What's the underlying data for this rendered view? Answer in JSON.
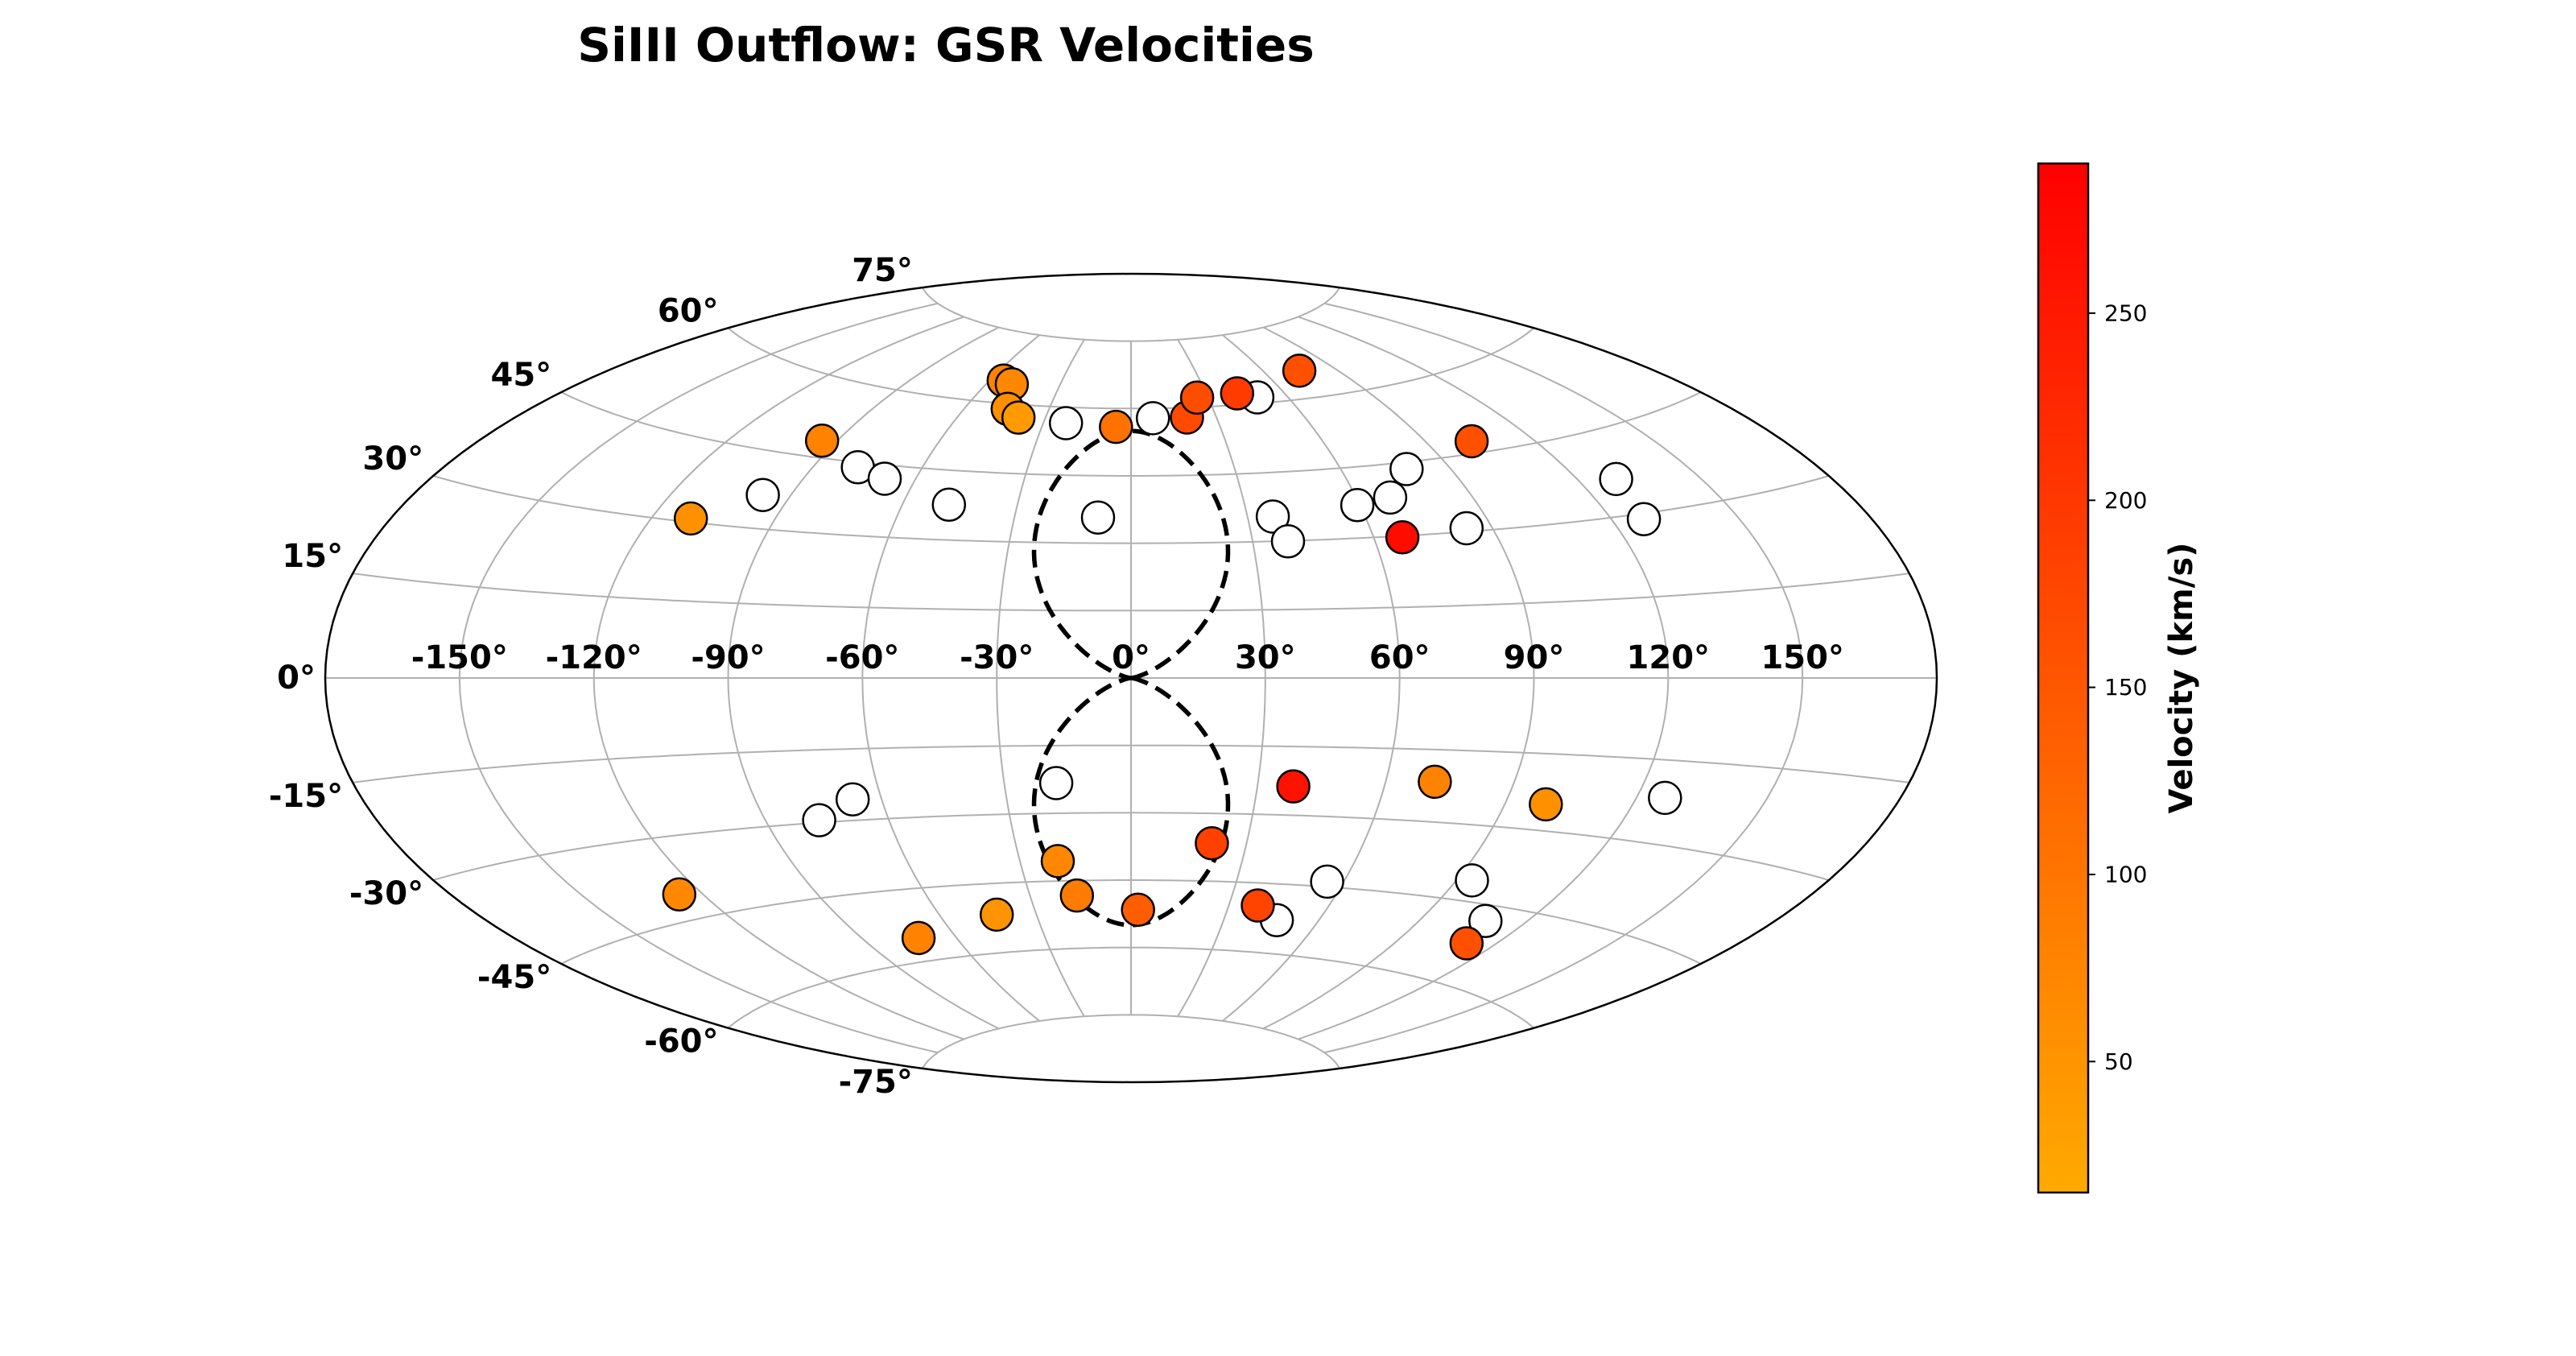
{
  "chart_data": {
    "type": "scatter",
    "projection": "aitoff",
    "title": "SiIII Outflow: GSR Velocities",
    "lon_ticks": [
      -150,
      -120,
      -90,
      -60,
      -30,
      0,
      30,
      60,
      90,
      120,
      150
    ],
    "lon_tick_labels": [
      "-150°",
      "-120°",
      "-90°",
      "-60°",
      "-30°",
      "0°",
      "30°",
      "60°",
      "90°",
      "120°",
      "150°"
    ],
    "lat_ticks": [
      -75,
      -60,
      -45,
      -30,
      -15,
      0,
      15,
      30,
      45,
      60,
      75
    ],
    "lat_tick_labels": [
      "-75°",
      "-60°",
      "-45°",
      "-30°",
      "-15°",
      "0°",
      "15°",
      "30°",
      "45°",
      "60°",
      "75°"
    ],
    "grid": true,
    "bubble_boundary_style": "dashed",
    "bubble_lobes": [
      {
        "hemisphere": "north",
        "lat_range": [
          0,
          55
        ],
        "lon_halfwidth": 25
      },
      {
        "hemisphere": "south",
        "lat_range": [
          -55,
          0
        ],
        "lon_halfwidth": 25
      }
    ],
    "colorbar": {
      "label": "Velocity (km/s)",
      "range": [
        15,
        290
      ],
      "ticks": [
        50,
        100,
        150,
        200,
        250
      ],
      "tick_labels": [
        "50",
        "100",
        "150",
        "200",
        "250"
      ],
      "colormap": "autumn_r",
      "color_low": "#ffaa00",
      "color_high": "#ff0000",
      "placement": "right"
    },
    "colored_points": [
      {
        "lon": -110.5,
        "lat": 30.7,
        "velocity": 55
      },
      {
        "lon": -94.3,
        "lat": 48.3,
        "velocity": 80
      },
      {
        "lon": -54.3,
        "lat": 64.8,
        "velocity": 80
      },
      {
        "lon": -49.8,
        "lat": 64.2,
        "velocity": 70
      },
      {
        "lon": -44.8,
        "lat": 58.9,
        "velocity": 60
      },
      {
        "lon": -39.3,
        "lat": 57.2,
        "velocity": 40
      },
      {
        "lon": -5.1,
        "lat": 55.9,
        "velocity": 105
      },
      {
        "lon": 19.7,
        "lat": 57.8,
        "velocity": 170
      },
      {
        "lon": 25.8,
        "lat": 62.1,
        "velocity": 165
      },
      {
        "lon": 42.1,
        "lat": 62.5,
        "velocity": 195
      },
      {
        "lon": 75.0,
        "lat": 65.7,
        "velocity": 160
      },
      {
        "lon": 102.9,
        "lat": 47.3,
        "velocity": 160
      },
      {
        "lon": 67.0,
        "lat": 29.7,
        "velocity": 270
      },
      {
        "lon": 38.5,
        "lat": -23.7,
        "velocity": 260
      },
      {
        "lon": 71.5,
        "lat": -21.7,
        "velocity": 80
      },
      {
        "lon": 99.7,
        "lat": -24.9,
        "velocity": 55
      },
      {
        "lon": 21.0,
        "lat": -36.6,
        "velocity": 185
      },
      {
        "lon": -19.8,
        "lat": -40.6,
        "velocity": 70
      },
      {
        "lon": -16.1,
        "lat": -48.3,
        "velocity": 90
      },
      {
        "lon": -42.4,
        "lat": -51.8,
        "velocity": 50
      },
      {
        "lon": 2.2,
        "lat": -51.6,
        "velocity": 140
      },
      {
        "lon": 38.8,
        "lat": -49.9,
        "velocity": 180
      },
      {
        "lon": -72.3,
        "lat": -55.2,
        "velocity": 80
      },
      {
        "lon": 111.5,
        "lat": -52.5,
        "velocity": 160
      },
      {
        "lon": -126.0,
        "lat": -40.4,
        "velocity": 70
      }
    ],
    "open_points": [
      {
        "lon": -97.1,
        "lat": 36.6
      },
      {
        "lon": -77.8,
        "lat": 44.0
      },
      {
        "lon": -68.4,
        "lat": 42.2
      },
      {
        "lon": -47.9,
        "lat": 37.6
      },
      {
        "lon": -22.3,
        "lat": 56.5
      },
      {
        "lon": -8.5,
        "lat": 35.7
      },
      {
        "lon": 7.7,
        "lat": 57.8
      },
      {
        "lon": 48.7,
        "lat": 61.3
      },
      {
        "lon": 36.5,
        "lat": 35.4
      },
      {
        "lon": 59.3,
        "lat": 37.0
      },
      {
        "lon": 68.8,
        "lat": 38.1
      },
      {
        "lon": 78.1,
        "lat": 43.6
      },
      {
        "lon": 129.6,
        "lat": 36.5
      },
      {
        "lon": 38.7,
        "lat": 29.9
      },
      {
        "lon": 83.7,
        "lat": 30.7
      },
      {
        "lon": 127.7,
        "lat": 29.0
      },
      {
        "lon": -77.0,
        "lat": -29.5
      },
      {
        "lon": -66.9,
        "lat": -25.6
      },
      {
        "lon": -17.7,
        "lat": -23.3
      },
      {
        "lon": 55.4,
        "lat": -43.9
      },
      {
        "lon": 94.1,
        "lat": -40.9
      },
      {
        "lon": 126.6,
        "lat": -21.8
      },
      {
        "lon": 46.9,
        "lat": -52.8
      },
      {
        "lon": 108.7,
        "lat": -48.0
      }
    ]
  }
}
